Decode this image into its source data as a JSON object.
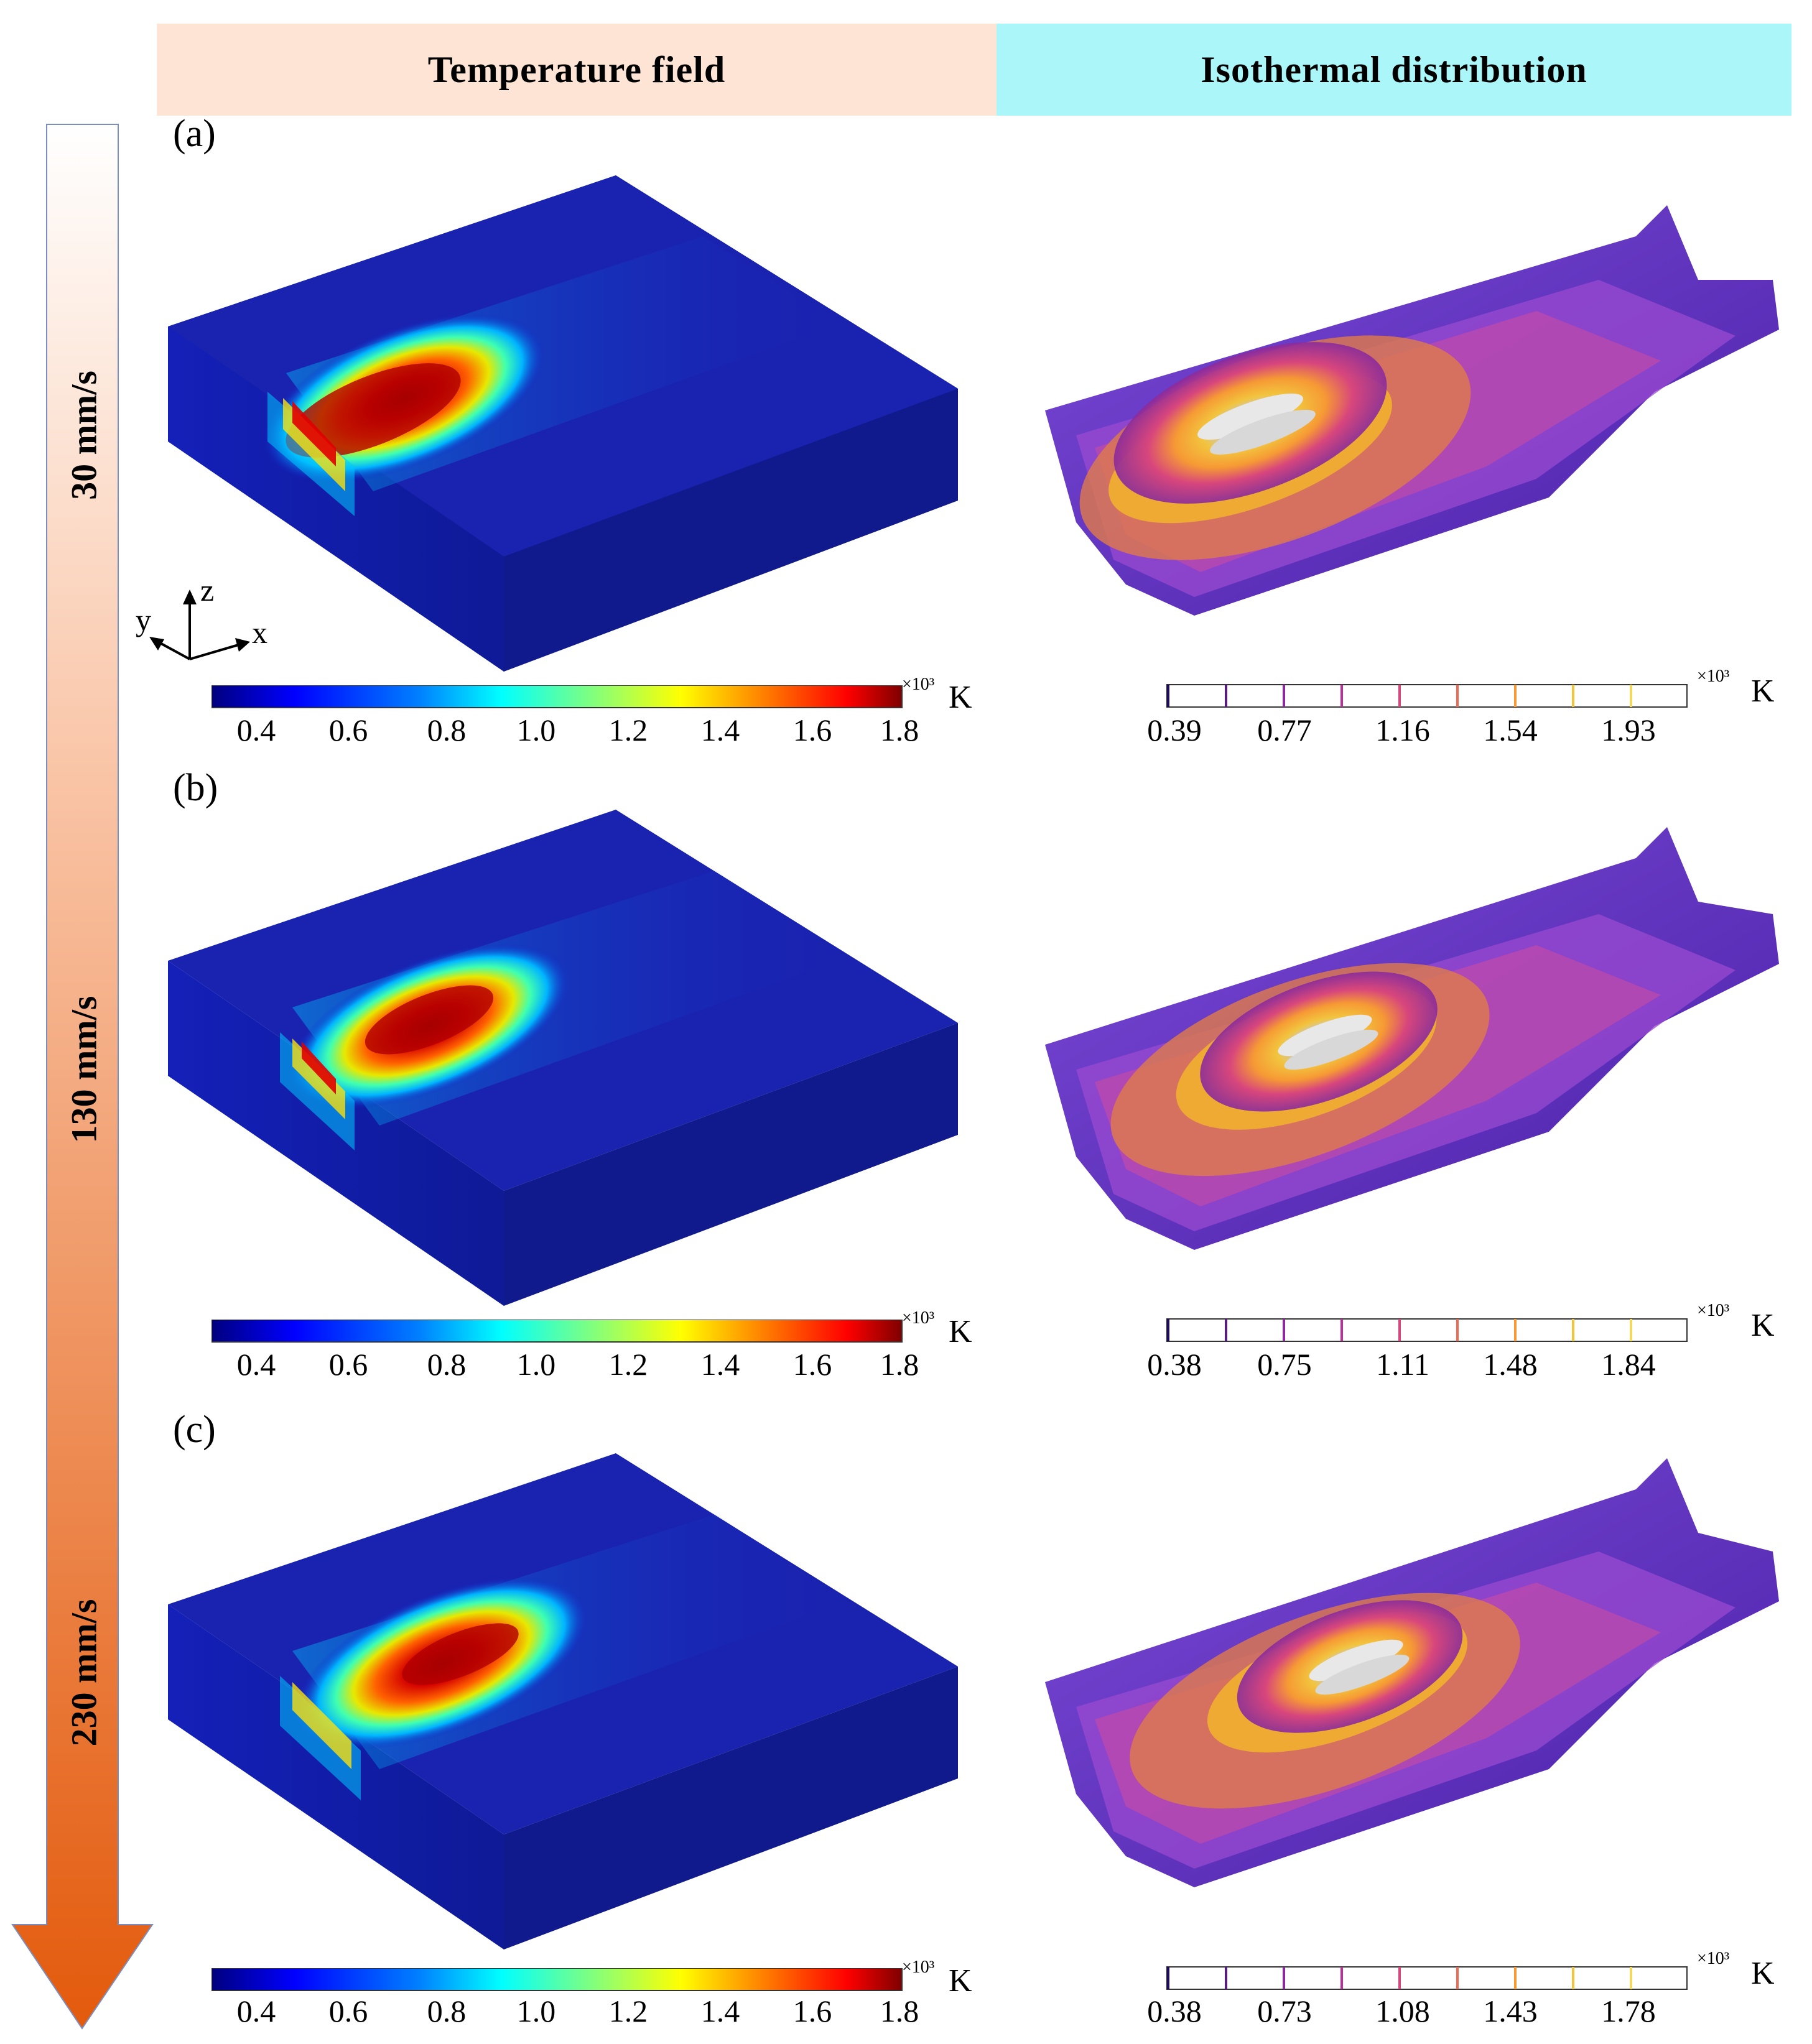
{
  "headers": {
    "left": "Temperature field",
    "right": "Isothermal distribution"
  },
  "panels": [
    {
      "label": "(a)",
      "speed": "30 mm/s",
      "temp_scale": {
        "ticks": [
          "0.4",
          "0.6",
          "0.8",
          "1.0",
          "1.2",
          "1.4",
          "1.6",
          "1.8"
        ],
        "multiplier": "×10³",
        "unit": "K"
      },
      "iso_scale": {
        "ticks": [
          "0.39",
          "0.77",
          "1.16",
          "1.54",
          "1.93"
        ],
        "multiplier": "×10³",
        "unit": "K"
      }
    },
    {
      "label": "(b)",
      "speed": "130 mm/s",
      "temp_scale": {
        "ticks": [
          "0.4",
          "0.6",
          "0.8",
          "1.0",
          "1.2",
          "1.4",
          "1.6",
          "1.8"
        ],
        "multiplier": "×10³",
        "unit": "K"
      },
      "iso_scale": {
        "ticks": [
          "0.38",
          "0.75",
          "1.11",
          "1.48",
          "1.84"
        ],
        "multiplier": "×10³",
        "unit": "K"
      }
    },
    {
      "label": "(c)",
      "speed": "230 mm/s",
      "temp_scale": {
        "ticks": [
          "0.4",
          "0.6",
          "0.8",
          "1.0",
          "1.2",
          "1.4",
          "1.6",
          "1.8"
        ],
        "multiplier": "×10³",
        "unit": "K"
      },
      "iso_scale": {
        "ticks": [
          "0.38",
          "0.73",
          "1.08",
          "1.43",
          "1.78"
        ],
        "multiplier": "×10³",
        "unit": "K"
      }
    }
  ],
  "axes": {
    "x": "x",
    "y": "y",
    "z": "z"
  },
  "colors": {
    "jet": [
      "#00007f",
      "#0000ff",
      "#007fff",
      "#00ffff",
      "#7fff7f",
      "#ffff00",
      "#ff7f00",
      "#ff0000",
      "#7f0000"
    ],
    "iso": [
      "#1e0a5c",
      "#5a1a8c",
      "#8a2a9c",
      "#b8329a",
      "#d8467c",
      "#ee6a52",
      "#f69a34",
      "#f2c43e",
      "#fff5a0"
    ],
    "arrow_top": "#ffffff",
    "arrow_bottom": "#e35a0c"
  }
}
